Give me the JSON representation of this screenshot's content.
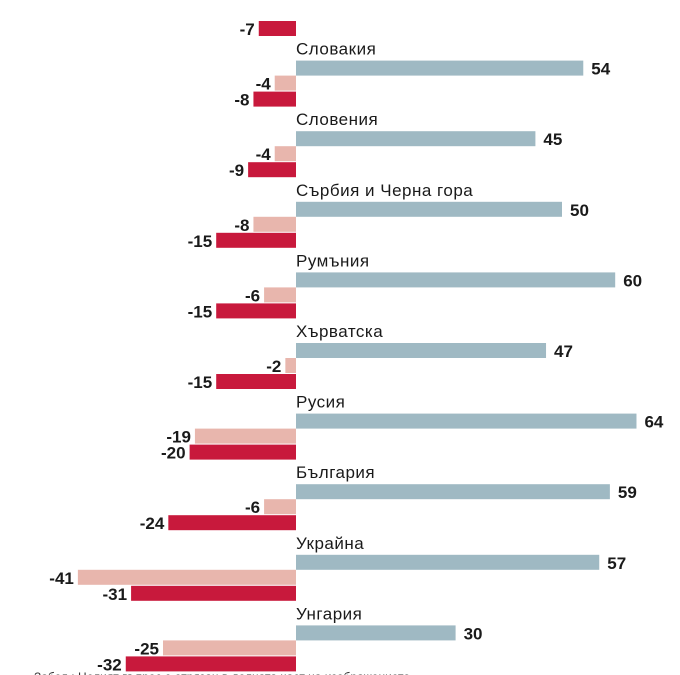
{
  "colors": {
    "positive": "#9fb9c3",
    "negative_light": "#e8b6ad",
    "negative_dark": "#c8193c",
    "text": "#1a1a1a"
  },
  "footnote": "Забел.: Целият въпрос е отрязан в долната част на изображението",
  "chart_data": {
    "type": "bar",
    "orientation": "horizontal",
    "title": "",
    "xlabel": "",
    "ylabel": "",
    "categories": [
      "",
      "Словакия",
      "Словения",
      "Сърбия и Черна гора",
      "Румъния",
      "Хърватска",
      "Русия",
      "България",
      "Украйна",
      "Унгария"
    ],
    "series": [
      {
        "key": "neg_light",
        "values": [
          null,
          -4,
          -4,
          -8,
          -6,
          -2,
          -19,
          -6,
          -41,
          -25
        ]
      },
      {
        "key": "neg_dark",
        "values": [
          -7,
          -8,
          -9,
          -15,
          -15,
          -15,
          -20,
          -24,
          -31,
          -32
        ]
      },
      {
        "key": "pos",
        "values": [
          null,
          54,
          45,
          50,
          60,
          47,
          64,
          59,
          57,
          30
        ]
      }
    ],
    "value_labels": {
      "neg_light": [
        "",
        "-4",
        "-4",
        "-8",
        "-6",
        "-2",
        "-19",
        "-6",
        "-41",
        "-25"
      ],
      "neg_dark": [
        "-7",
        "-8",
        "-9",
        "-15",
        "-15",
        "-15",
        "-20",
        "-24",
        "-31",
        "-32"
      ],
      "pos": [
        "",
        "54",
        "45",
        "50",
        "60",
        "47",
        "64",
        "59",
        "57",
        "30"
      ]
    },
    "xlim": [
      -41,
      64
    ],
    "grid": false,
    "legend": "none"
  }
}
